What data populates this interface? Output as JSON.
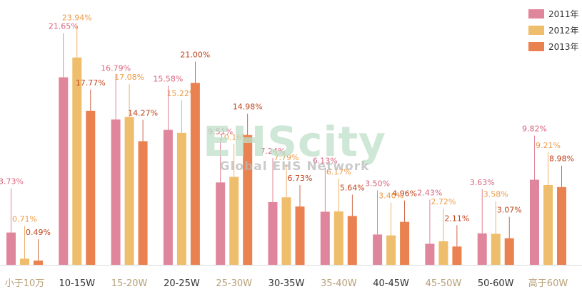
{
  "chart_data": {
    "type": "bar",
    "categories": [
      "小于10万",
      "10-15W",
      "15-20W",
      "20-25W",
      "25-30W",
      "30-35W",
      "35-40W",
      "40-45W",
      "45-50W",
      "50-60W",
      "高于60W"
    ],
    "category_label_colors": [
      "#b8a079",
      "#333333",
      "#b8a079",
      "#333333",
      "#b8a079",
      "#333333",
      "#b8a079",
      "#333333",
      "#b8a079",
      "#333333",
      "#b8a079"
    ],
    "series": [
      {
        "name": "2011年",
        "color": "#e0869c",
        "label_color": "#d9667f",
        "values": [
          3.73,
          21.65,
          16.79,
          15.58,
          9.51,
          7.24,
          6.13,
          3.5,
          2.43,
          3.63,
          9.82
        ],
        "labels": [
          "3.73%",
          "21.65%",
          "16.79%",
          "15.58%",
          "9.51%",
          "7.24%",
          "6.13%",
          "3.50%",
          "2.43%",
          "3.63%",
          "9.82%"
        ]
      },
      {
        "name": "2012年",
        "color": "#efbe6c",
        "label_color": "#ee9a45",
        "values": [
          0.71,
          23.94,
          17.08,
          15.22,
          10.16,
          7.79,
          6.17,
          3.4,
          2.72,
          3.58,
          9.21
        ],
        "labels": [
          "0.71%",
          "23.94%",
          "17.08%",
          "15.22%",
          "10.16%",
          "7.79%",
          "6.17%",
          "3.40%",
          "2.72%",
          "3.58%",
          "9.21%"
        ]
      },
      {
        "name": "2013年",
        "color": "#ea8150",
        "label_color": "#c0441d",
        "values": [
          0.49,
          17.77,
          14.27,
          21.0,
          14.98,
          6.73,
          5.64,
          4.96,
          2.11,
          3.07,
          8.98
        ],
        "labels": [
          "0.49%",
          "17.77%",
          "14.27%",
          "21.00%",
          "14.98%",
          "6.73%",
          "5.64%",
          "4.96%",
          "2.11%",
          "3.07%",
          "8.98%"
        ]
      }
    ],
    "ylim": [
      0,
      24
    ],
    "legend_position": "top-right",
    "grid": false
  },
  "watermark": {
    "main": "EHScity",
    "sub": "Global EHS Network"
  }
}
